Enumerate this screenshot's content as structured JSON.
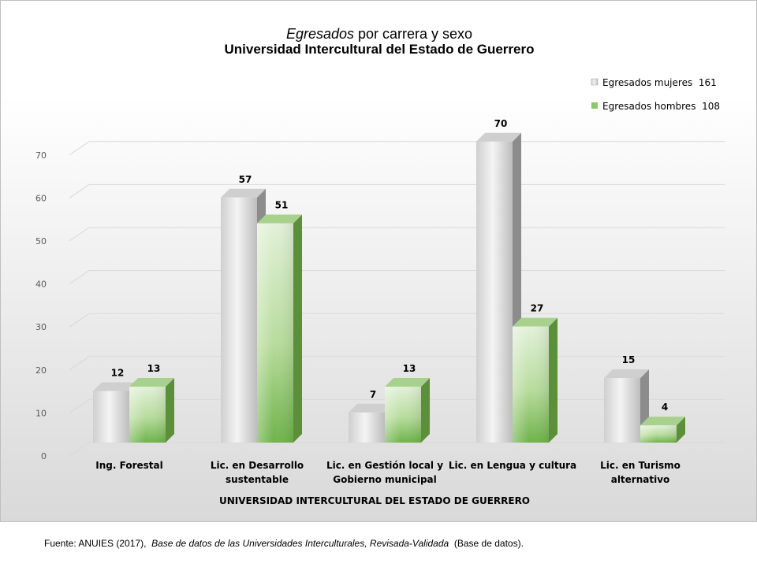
{
  "chart_data": {
    "type": "bar",
    "title_italic": "Egresados",
    "title_rest": " por carrera y sexo",
    "subtitle": "Universidad Intercultural del Estado de Guerrero",
    "xlabel": "UNIVERSIDAD INTERCULTURAL DEL ESTADO DE GUERRERO",
    "ylabel": "",
    "ylim": [
      0,
      70
    ],
    "yticks": [
      0,
      10,
      20,
      30,
      40,
      50,
      60,
      70
    ],
    "grid": true,
    "legend_position": "top-right",
    "categories": [
      [
        "Ing. Forestal"
      ],
      [
        "Lic. en Desarrollo",
        "sustentable"
      ],
      [
        "Lic. en Gestión local y",
        "Gobierno municipal"
      ],
      [
        "Lic. en Lengua y cultura"
      ],
      [
        "Lic. en Turismo",
        "alternativo"
      ]
    ],
    "series": [
      {
        "name": "Egresados mujeres  161",
        "values": [
          12,
          57,
          7,
          70,
          15
        ],
        "color": "#bfbfbf"
      },
      {
        "name": "Egresados hombres  108",
        "values": [
          13,
          51,
          13,
          27,
          4
        ],
        "color": "#70ad47"
      }
    ]
  },
  "footer": {
    "source_prefix": "Fuente: ANUIES (2017),  ",
    "source_italic": "Base de datos de las Universidades  Interculturales, Revisada-Validada",
    "source_suffix": "  (Base de datos)."
  }
}
